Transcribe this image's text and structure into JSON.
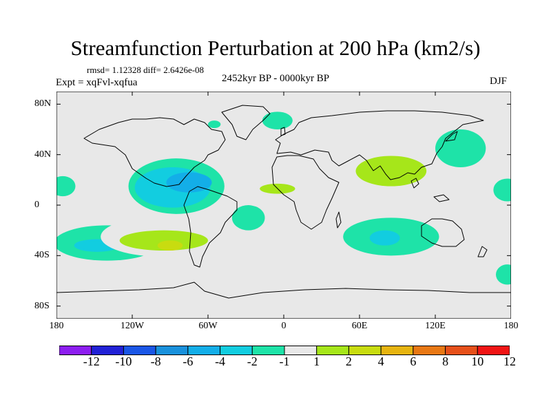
{
  "title": "Streamfunction Perturbation at 200 hPa (km2/s)",
  "stats_line": "rmsd= 1.12328 diff= 2.6426e-08",
  "experiment": "Expt = xqFvl-xqfua",
  "period": "2452kyr BP - 0000kyr BP",
  "season": "DJF",
  "x_ticks": [
    {
      "label": "180",
      "lon": -180
    },
    {
      "label": "120W",
      "lon": -120
    },
    {
      "label": "60W",
      "lon": -60
    },
    {
      "label": "0",
      "lon": 0
    },
    {
      "label": "60E",
      "lon": 60
    },
    {
      "label": "120E",
      "lon": 120
    },
    {
      "label": "180",
      "lon": 180
    }
  ],
  "y_ticks": [
    {
      "label": "80N",
      "lat": 80
    },
    {
      "label": "40N",
      "lat": 40
    },
    {
      "label": "0",
      "lat": 0
    },
    {
      "label": "40S",
      "lat": -40
    },
    {
      "label": "80S",
      "lat": -80
    }
  ],
  "colorbar": {
    "labels": [
      "-12",
      "-10",
      "-8",
      "-6",
      "-4",
      "-2",
      "-1",
      "1",
      "2",
      "4",
      "6",
      "8",
      "10",
      "12"
    ],
    "colors": [
      "#8d1ef0",
      "#2121d6",
      "#1a56e6",
      "#1991dc",
      "#13aee8",
      "#12cde0",
      "#1ee3a8",
      "#e8e8e8",
      "#a6e61a",
      "#c8dc10",
      "#e6b410",
      "#e87814",
      "#e6501a",
      "#f01414"
    ]
  },
  "map_background_color": "#e8e8e8",
  "anomalies": [
    {
      "lon": -175,
      "lat": 15,
      "rlon": 10,
      "rlat": 8,
      "level": "-1"
    },
    {
      "lon": -140,
      "lat": -30,
      "rlon": 42,
      "rlat": 14,
      "level": "-1"
    },
    {
      "lon": -148,
      "lat": -32,
      "rlon": 18,
      "rlat": 5,
      "level": "-2"
    },
    {
      "lon": -130,
      "lat": 8,
      "rlon": 18,
      "rlat": 16,
      "level": "1"
    },
    {
      "lon": -95,
      "lat": -25,
      "rlon": 50,
      "rlat": 16,
      "level": "1"
    },
    {
      "lon": -95,
      "lat": -28,
      "rlon": 35,
      "rlat": 8,
      "level": "2"
    },
    {
      "lon": -90,
      "lat": -32,
      "rlon": 10,
      "rlat": 4,
      "level": "4"
    },
    {
      "lon": -85,
      "lat": 15,
      "rlon": 38,
      "rlat": 22,
      "level": "-1"
    },
    {
      "lon": -88,
      "lat": 14,
      "rlon": 30,
      "rlat": 16,
      "level": "-2"
    },
    {
      "lon": -75,
      "lat": 18,
      "rlon": 18,
      "rlat": 8,
      "level": "-4"
    },
    {
      "lon": -55,
      "lat": 45,
      "rlon": 18,
      "rlat": 8,
      "level": "1"
    },
    {
      "lon": -90,
      "lat": 44,
      "rlon": 6,
      "rlat": 3,
      "level": "1"
    },
    {
      "lon": -55,
      "lat": 64,
      "rlon": 5,
      "rlat": 3,
      "level": "-1"
    },
    {
      "lon": -28,
      "lat": -10,
      "rlon": 13,
      "rlat": 10,
      "level": "-1"
    },
    {
      "lon": -48,
      "lat": -55,
      "rlon": 22,
      "rlat": 9,
      "level": "1"
    },
    {
      "lon": -5,
      "lat": 67,
      "rlon": 12,
      "rlat": 7,
      "level": "-1"
    },
    {
      "lon": 40,
      "lat": 55,
      "rlon": 26,
      "rlat": 12,
      "level": "1"
    },
    {
      "lon": -12,
      "lat": 12,
      "rlon": 28,
      "rlat": 14,
      "level": "1"
    },
    {
      "lon": -5,
      "lat": 13,
      "rlon": 14,
      "rlat": 4,
      "level": "2"
    },
    {
      "lon": 32,
      "lat": -28,
      "rlon": 14,
      "rlat": 8,
      "level": "1"
    },
    {
      "lon": 85,
      "lat": 25,
      "rlon": 42,
      "rlat": 20,
      "level": "1"
    },
    {
      "lon": 85,
      "lat": 27,
      "rlon": 28,
      "rlat": 12,
      "level": "2"
    },
    {
      "lon": 85,
      "lat": -25,
      "rlon": 38,
      "rlat": 15,
      "level": "-1"
    },
    {
      "lon": 80,
      "lat": -26,
      "rlon": 12,
      "rlat": 6,
      "level": "-2"
    },
    {
      "lon": 140,
      "lat": 45,
      "rlon": 20,
      "rlat": 15,
      "level": "-1"
    },
    {
      "lon": 158,
      "lat": -35,
      "rlon": 20,
      "rlat": 10,
      "level": "1"
    },
    {
      "lon": 177,
      "lat": 12,
      "rlon": 11,
      "rlat": 9,
      "level": "-1"
    },
    {
      "lon": 177,
      "lat": -55,
      "rlon": 9,
      "rlat": 8,
      "level": "-1"
    }
  ]
}
